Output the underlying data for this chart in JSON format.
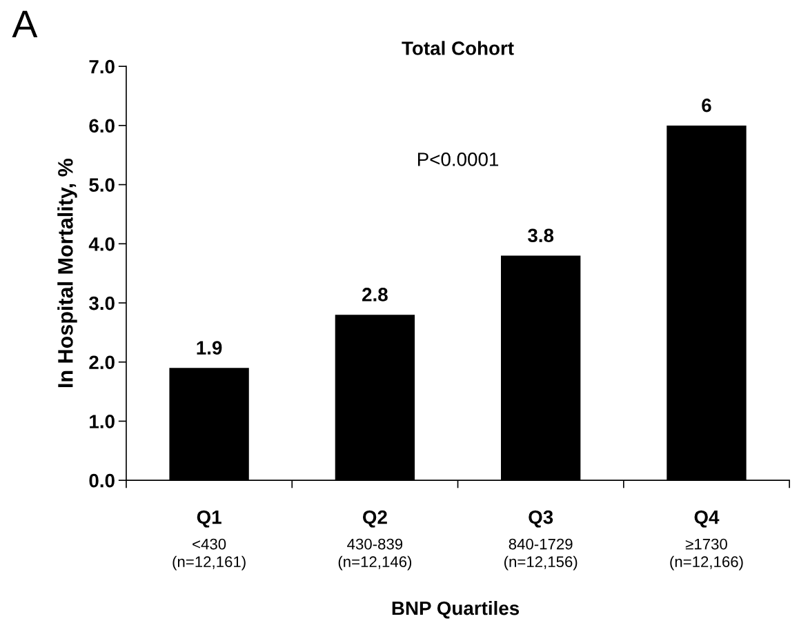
{
  "chart_data": {
    "type": "bar",
    "title": "Total Cohort",
    "xlabel": "BNP Quartiles",
    "ylabel": "In Hospital Mortality, %",
    "categories": [
      "Q1\n<430\n(n=12,161)",
      "Q2\n430-839\n(n=12,146)",
      "Q3\n840-1729\n(n=12,156)",
      "Q4\n≥1730\n(n=12,166)"
    ],
    "values": [
      1.9,
      2.8,
      3.8,
      6
    ],
    "color": "#000000",
    "data_labels": true,
    "ylim": [
      0,
      7
    ],
    "yticks": [
      {
        "value": 0,
        "label": "0.0"
      },
      {
        "value": 1,
        "label": "1.0"
      },
      {
        "value": 2,
        "label": "2.0"
      },
      {
        "value": 3,
        "label": "3.0"
      },
      {
        "value": 4,
        "label": "4.0"
      },
      {
        "value": 5,
        "label": "5.0"
      },
      {
        "value": 6,
        "label": "6.0"
      },
      {
        "value": 7,
        "label": "7.0"
      }
    ],
    "annotations": [
      "A",
      "P<0.0001"
    ],
    "grid": false,
    "legend": false
  }
}
